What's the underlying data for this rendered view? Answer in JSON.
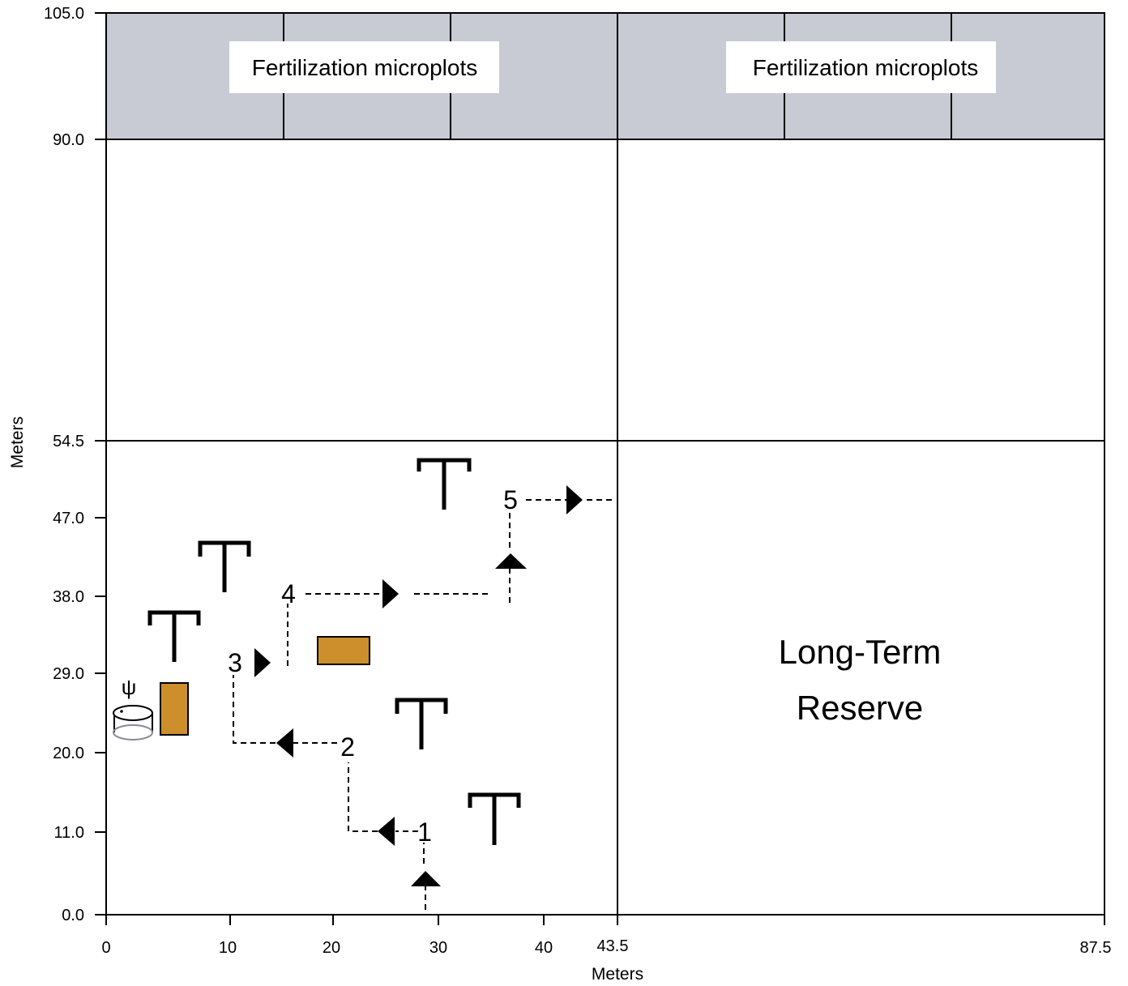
{
  "chart_data": {
    "type": "diagram",
    "xlabel": "Meters",
    "ylabel": "Meters",
    "x_ticks": [
      "0",
      "10",
      "20",
      "30",
      "40",
      "43.5",
      "87.5"
    ],
    "y_ticks": [
      "0.0",
      "11.0",
      "20.0",
      "29.0",
      "38.0",
      "47.0",
      "54.5",
      "90.0",
      "105.0"
    ],
    "fertilization_label_left": "Fertilization microplots",
    "fertilization_label_right": "Fertilization microplots",
    "reserve_line1": "Long-Term",
    "reserve_line2": "Reserve",
    "steps": [
      "1",
      "2",
      "3",
      "4",
      "5"
    ],
    "psi_symbol": "ψ",
    "colors": {
      "fertilization_band": "#c8cbd3",
      "plot_box": "#cc8f2c",
      "sensor_outline": "#8a8a9a"
    }
  }
}
